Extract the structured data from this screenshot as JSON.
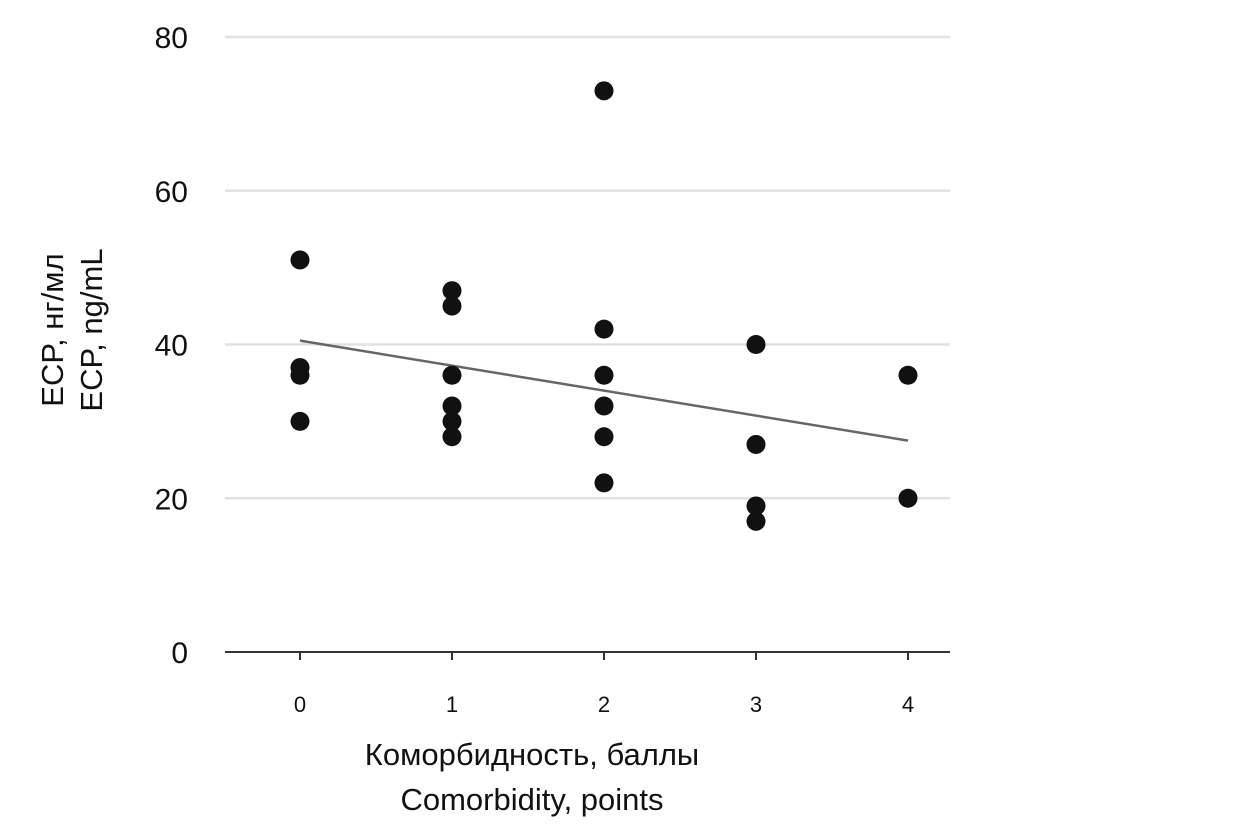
{
  "chart_data": {
    "type": "scatter",
    "title": "",
    "xlabel": [
      "Коморбидность, баллы",
      "Comorbidity, points"
    ],
    "ylabel": [
      "ECP, нг/мл",
      "ECP, ng/mL"
    ],
    "x_ticks": [
      "0",
      "1",
      "2",
      "3",
      "4"
    ],
    "y_ticks": [
      "0",
      "20",
      "40",
      "60",
      "80"
    ],
    "xlim": [
      -0.5,
      4.3
    ],
    "ylim": [
      0,
      80
    ],
    "grid": "horizontal",
    "legend": "none",
    "marker_color": "#111111",
    "trendline_color": "#666666",
    "gridline_color": "#e2e2e2",
    "points": [
      {
        "x": 0,
        "y": 51
      },
      {
        "x": 0,
        "y": 37
      },
      {
        "x": 0,
        "y": 36
      },
      {
        "x": 0,
        "y": 30
      },
      {
        "x": 1,
        "y": 47
      },
      {
        "x": 1,
        "y": 45
      },
      {
        "x": 1,
        "y": 36
      },
      {
        "x": 1,
        "y": 32
      },
      {
        "x": 1,
        "y": 30
      },
      {
        "x": 1,
        "y": 28
      },
      {
        "x": 2,
        "y": 73
      },
      {
        "x": 2,
        "y": 42
      },
      {
        "x": 2,
        "y": 36
      },
      {
        "x": 2,
        "y": 32
      },
      {
        "x": 2,
        "y": 28
      },
      {
        "x": 2,
        "y": 22
      },
      {
        "x": 3,
        "y": 40
      },
      {
        "x": 3,
        "y": 27
      },
      {
        "x": 3,
        "y": 19
      },
      {
        "x": 3,
        "y": 17
      },
      {
        "x": 4,
        "y": 36
      },
      {
        "x": 4,
        "y": 20
      }
    ],
    "trendline": {
      "x": [
        0,
        4
      ],
      "y": [
        40.5,
        27.5
      ]
    }
  }
}
